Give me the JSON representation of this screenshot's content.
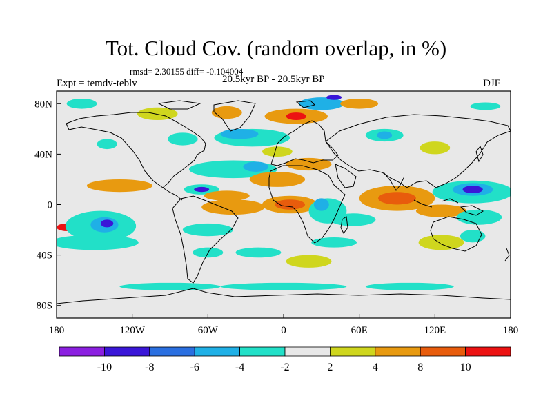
{
  "title": "Tot. Cloud Cov. (random overlap, in %)",
  "stats": "rmsd= 2.30155 diff= -0.104004",
  "experiment": "Expt = temdv-teblv",
  "period": "20.5kyr BP - 20.5kyr BP",
  "season": "DJF",
  "axes": {
    "x_ticks": [
      {
        "lon": -180,
        "label": "180"
      },
      {
        "lon": -120,
        "label": "120W"
      },
      {
        "lon": -60,
        "label": "60W"
      },
      {
        "lon": 0,
        "label": "0"
      },
      {
        "lon": 60,
        "label": "60E"
      },
      {
        "lon": 120,
        "label": "120E"
      },
      {
        "lon": 180,
        "label": "180"
      }
    ],
    "y_ticks": [
      {
        "lat": 80,
        "label": "80N"
      },
      {
        "lat": 40,
        "label": "40N"
      },
      {
        "lat": 0,
        "label": "0"
      },
      {
        "lat": -40,
        "label": "40S"
      },
      {
        "lat": -80,
        "label": "80S"
      }
    ],
    "lon_range": [
      -180,
      180
    ],
    "lat_range": [
      -90,
      90
    ]
  },
  "colorbar": {
    "colors": [
      "#8b1fe0",
      "#3a16d8",
      "#2a6fe0",
      "#1fb0e6",
      "#22e0c8",
      "#e8e8e8",
      "#cfd61e",
      "#e89a10",
      "#e85c0c",
      "#ec1212"
    ],
    "labels": [
      "-10",
      "-8",
      "-6",
      "-4",
      "-2",
      "2",
      "4",
      "8",
      "10"
    ]
  },
  "field_regions": [
    {
      "lon": -130,
      "lat": 15,
      "rx": 26,
      "ry": 5,
      "level": 7
    },
    {
      "lon": -172,
      "lat": -18,
      "rx": 8,
      "ry": 3,
      "level": 9
    },
    {
      "lon": -145,
      "lat": -17,
      "rx": 28,
      "ry": 12,
      "level": 4
    },
    {
      "lon": -142,
      "lat": -16,
      "rx": 11,
      "ry": 6,
      "level": 3
    },
    {
      "lon": -140,
      "lat": -15,
      "rx": 5,
      "ry": 3,
      "level": 1
    },
    {
      "lon": -150,
      "lat": -30,
      "rx": 35,
      "ry": 6,
      "level": 4
    },
    {
      "lon": -40,
      "lat": 28,
      "rx": 35,
      "ry": 7,
      "level": 4
    },
    {
      "lon": -22,
      "lat": 30,
      "rx": 10,
      "ry": 4,
      "level": 3
    },
    {
      "lon": -65,
      "lat": 12,
      "rx": 14,
      "ry": 4,
      "level": 4
    },
    {
      "lon": -65,
      "lat": 12,
      "rx": 6,
      "ry": 2,
      "level": 1
    },
    {
      "lon": -45,
      "lat": 7,
      "rx": 18,
      "ry": 4,
      "level": 7
    },
    {
      "lon": -40,
      "lat": -2,
      "rx": 25,
      "ry": 6,
      "level": 7
    },
    {
      "lon": -5,
      "lat": 20,
      "rx": 22,
      "ry": 6,
      "level": 7
    },
    {
      "lon": 5,
      "lat": 0,
      "rx": 22,
      "ry": 7,
      "level": 7
    },
    {
      "lon": 5,
      "lat": 0,
      "rx": 12,
      "ry": 4,
      "level": 8
    },
    {
      "lon": 20,
      "lat": 32,
      "rx": 18,
      "ry": 5,
      "level": 7
    },
    {
      "lon": 35,
      "lat": -5,
      "rx": 15,
      "ry": 10,
      "level": 4
    },
    {
      "lon": 30,
      "lat": 0,
      "rx": 6,
      "ry": 5,
      "level": 3
    },
    {
      "lon": 55,
      "lat": -12,
      "rx": 18,
      "ry": 5,
      "level": 4
    },
    {
      "lon": 90,
      "lat": 5,
      "rx": 30,
      "ry": 10,
      "level": 7
    },
    {
      "lon": 90,
      "lat": 5,
      "rx": 15,
      "ry": 5,
      "level": 8
    },
    {
      "lon": 125,
      "lat": -5,
      "rx": 20,
      "ry": 5,
      "level": 7
    },
    {
      "lon": 150,
      "lat": 10,
      "rx": 32,
      "ry": 9,
      "level": 4
    },
    {
      "lon": 150,
      "lat": 12,
      "rx": 16,
      "ry": 5,
      "level": 3
    },
    {
      "lon": 150,
      "lat": 12,
      "rx": 8,
      "ry": 3,
      "level": 1
    },
    {
      "lon": 155,
      "lat": -10,
      "rx": 18,
      "ry": 6,
      "level": 4
    },
    {
      "lon": 125,
      "lat": -30,
      "rx": 18,
      "ry": 6,
      "level": 6
    },
    {
      "lon": 150,
      "lat": -25,
      "rx": 10,
      "ry": 5,
      "level": 4
    },
    {
      "lon": -60,
      "lat": -20,
      "rx": 20,
      "ry": 5,
      "level": 4
    },
    {
      "lon": -60,
      "lat": -38,
      "rx": 12,
      "ry": 4,
      "level": 4
    },
    {
      "lon": -20,
      "lat": -38,
      "rx": 18,
      "ry": 4,
      "level": 4
    },
    {
      "lon": 20,
      "lat": -45,
      "rx": 18,
      "ry": 5,
      "level": 6
    },
    {
      "lon": 40,
      "lat": -30,
      "rx": 18,
      "ry": 4,
      "level": 4
    },
    {
      "lon": -80,
      "lat": 52,
      "rx": 12,
      "ry": 5,
      "level": 4
    },
    {
      "lon": -25,
      "lat": 53,
      "rx": 30,
      "ry": 7,
      "level": 4
    },
    {
      "lon": -35,
      "lat": 56,
      "rx": 15,
      "ry": 4,
      "level": 3
    },
    {
      "lon": -5,
      "lat": 42,
      "rx": 12,
      "ry": 4,
      "level": 6
    },
    {
      "lon": 10,
      "lat": 70,
      "rx": 25,
      "ry": 6,
      "level": 7
    },
    {
      "lon": 10,
      "lat": 70,
      "rx": 8,
      "ry": 3,
      "level": 9
    },
    {
      "lon": 30,
      "lat": 80,
      "rx": 18,
      "ry": 5,
      "level": 3
    },
    {
      "lon": 40,
      "lat": 85,
      "rx": 6,
      "ry": 2,
      "level": 1
    },
    {
      "lon": 60,
      "lat": 80,
      "rx": 15,
      "ry": 4,
      "level": 7
    },
    {
      "lon": 80,
      "lat": 55,
      "rx": 15,
      "ry": 5,
      "level": 4
    },
    {
      "lon": 80,
      "lat": 55,
      "rx": 6,
      "ry": 3,
      "level": 3
    },
    {
      "lon": 120,
      "lat": 45,
      "rx": 12,
      "ry": 5,
      "level": 6
    },
    {
      "lon": -100,
      "lat": 72,
      "rx": 16,
      "ry": 5,
      "level": 6
    },
    {
      "lon": -45,
      "lat": 73,
      "rx": 12,
      "ry": 5,
      "level": 7
    },
    {
      "lon": -160,
      "lat": 80,
      "rx": 12,
      "ry": 4,
      "level": 4
    },
    {
      "lon": -140,
      "lat": 48,
      "rx": 8,
      "ry": 4,
      "level": 4
    },
    {
      "lon": 160,
      "lat": 78,
      "rx": 12,
      "ry": 3,
      "level": 4
    },
    {
      "lon": 0,
      "lat": -65,
      "rx": 50,
      "ry": 3,
      "level": 4
    },
    {
      "lon": -90,
      "lat": -65,
      "rx": 40,
      "ry": 3,
      "level": 4
    },
    {
      "lon": 100,
      "lat": -65,
      "rx": 35,
      "ry": 3,
      "level": 4
    }
  ]
}
